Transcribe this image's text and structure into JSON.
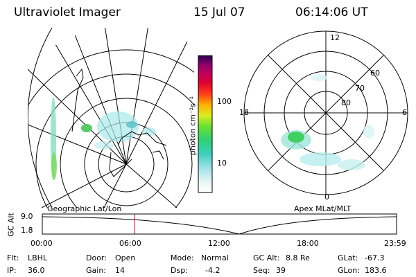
{
  "header": {
    "instrument": "Ultraviolet Imager",
    "date": "15 Jul 07",
    "time": "06:14:06 UT"
  },
  "colorbar": {
    "unit_label": "photon cm⁻²s⁻¹",
    "ticks": [
      "100",
      "10"
    ]
  },
  "left_plot": {
    "caption": "Geographic Lat/Lon"
  },
  "right_plot": {
    "caption": "Apex MLat/MLT",
    "mlt_labels": {
      "top": "12",
      "left": "18",
      "right": "6",
      "bottom": "0"
    },
    "lat_labels": [
      "60",
      "70",
      "80"
    ]
  },
  "altitude_plot": {
    "ylabel": "GC Alt",
    "ytick_top": "9.0",
    "ytick_bottom": "1.8",
    "x_ticks": [
      "00:00",
      "06:00",
      "12:00",
      "18:00",
      "23:59"
    ],
    "marker_time": "06:14"
  },
  "info": {
    "filter_label": "Flt:",
    "filter_value": "LBHL",
    "ip_label": "IP:",
    "ip_value": "36.0",
    "door_label": "Door:",
    "door_value": "Open",
    "gain_label": "Gain:",
    "gain_value": "14",
    "mode_label": "Mode:",
    "mode_value": "Normal",
    "dsp_label": "Dsp:",
    "dsp_value": "-4.2",
    "gcalt_label": "GC Alt:",
    "gcalt_value": "8.8 Re",
    "seq_label": "Seq:",
    "seq_value": "39",
    "glat_label": "GLat:",
    "glat_value": "-67.3",
    "glon_label": "GLon:",
    "glon_value": "183.6"
  },
  "colors": {
    "marker": "#ff0000",
    "text": "#000000"
  }
}
